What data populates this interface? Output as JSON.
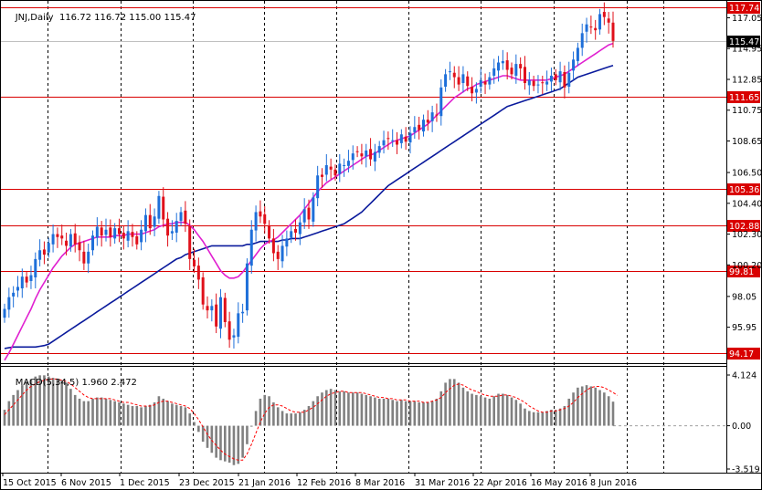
{
  "symbol_label": "JNJ,Daily",
  "ohlc_label": "116.72 116.72 115.00 115.47",
  "macd_label": "MACD(5,34,5) 1.960 2.472",
  "colors": {
    "bull": "#1e6fd9",
    "bear": "#e0101a",
    "ma_fast": "#e020d0",
    "ma_slow": "#0a1a9c",
    "level": "#d90000",
    "hist": "#808080",
    "signal": "#ff0000",
    "grid": "#000000"
  },
  "chart_data": [
    {
      "type": "candlestick",
      "title": "JNJ,Daily",
      "ylim": [
        93.5,
        118.2
      ],
      "y_ticks": [
        "117.05",
        "114.95",
        "112.85",
        "110.75",
        "108.65",
        "106.50",
        "104.40",
        "102.30",
        "100.20",
        "98.05",
        "95.95"
      ],
      "x_ticks": [
        "15 Oct 2015",
        "6 Nov 2015",
        "1 Dec 2015",
        "23 Dec 2015",
        "21 Jan 2016",
        "12 Feb 2016",
        "8 Mar 2016",
        "31 Mar 2016",
        "22 Apr 2016",
        "16 May 2016",
        "8 Jun 2016"
      ],
      "levels": [
        {
          "label": "117.74",
          "value": 117.74
        },
        {
          "label": "111.65",
          "value": 111.65
        },
        {
          "label": "105.36",
          "value": 105.36
        },
        {
          "label": "102.88",
          "value": 102.88
        },
        {
          "label": "99.81",
          "value": 99.81
        },
        {
          "label": "94.17",
          "value": 94.17
        }
      ],
      "current_price": {
        "label": "115.47",
        "value": 115.47
      },
      "closes": [
        97.2,
        98.0,
        98.3,
        98.7,
        99.4,
        99.0,
        99.5,
        100.6,
        101.2,
        100.9,
        101.7,
        102.3,
        102.1,
        102.0,
        101.5,
        102.3,
        101.6,
        101.2,
        100.3,
        101.1,
        102.2,
        102.8,
        102.2,
        102.6,
        102.1,
        102.7,
        102.3,
        102.0,
        102.5,
        102.1,
        101.6,
        102.6,
        103.6,
        102.7,
        103.5,
        104.9,
        103.3,
        102.2,
        102.5,
        103.2,
        103.8,
        103.0,
        100.6,
        100.1,
        99.2,
        97.5,
        97.1,
        97.4,
        96.0,
        98.0,
        96.3,
        95.1,
        95.4,
        96.9,
        97.0,
        100.3,
        102.6,
        103.8,
        103.5,
        103.0,
        102.0,
        101.0,
        100.6,
        101.5,
        102.0,
        102.5,
        102.4,
        103.1,
        104.0,
        103.3,
        104.8,
        106.3,
        106.2,
        107.0,
        106.7,
        106.3,
        107.1,
        107.0,
        107.3,
        107.8,
        107.9,
        107.6,
        108.0,
        107.4,
        107.9,
        108.3,
        108.7,
        108.8,
        108.7,
        108.4,
        109.1,
        108.6,
        109.2,
        109.6,
        109.4,
        110.1,
        109.9,
        110.6,
        110.4,
        112.3,
        113.2,
        113.4,
        113.0,
        112.5,
        113.2,
        112.4,
        111.9,
        112.2,
        112.8,
        112.5,
        113.0,
        113.6,
        114.0,
        114.1,
        113.5,
        113.2,
        113.9,
        113.6,
        112.6,
        112.8,
        112.4,
        112.5,
        112.6,
        112.7,
        113.1,
        112.8,
        113.4,
        112.3,
        113.3,
        114.2,
        115.0,
        116.0,
        116.6,
        116.4,
        116.2,
        117.3,
        117.1,
        116.72,
        115.47
      ],
      "ma_fast": [
        93.7,
        94.2,
        94.8,
        95.4,
        96.0,
        96.6,
        97.2,
        97.9,
        98.5,
        99.0,
        99.5,
        100.0,
        100.4,
        100.8,
        101.1,
        101.4,
        101.6,
        101.7,
        101.8,
        101.9,
        102.0,
        102.1,
        102.1,
        102.1,
        102.1,
        102.2,
        102.2,
        102.2,
        102.3,
        102.3,
        102.3,
        102.3,
        102.4,
        102.5,
        102.6,
        102.8,
        102.9,
        103.0,
        103.0,
        103.1,
        103.1,
        103.1,
        102.9,
        102.6,
        102.2,
        101.8,
        101.3,
        100.8,
        100.3,
        99.8,
        99.5,
        99.3,
        99.3,
        99.4,
        99.7,
        100.1,
        100.5,
        100.9,
        101.3,
        101.6,
        101.8,
        101.9,
        102.1,
        102.4,
        102.7,
        103.0,
        103.3,
        103.6,
        104.0,
        104.4,
        104.8,
        105.2,
        105.5,
        105.8,
        106.0,
        106.2,
        106.4,
        106.6,
        106.8,
        107.0,
        107.2,
        107.4,
        107.6,
        107.7,
        107.8,
        108.0,
        108.2,
        108.4,
        108.6,
        108.7,
        108.8,
        108.9,
        109.0,
        109.2,
        109.4,
        109.6,
        109.8,
        110.1,
        110.4,
        110.7,
        111.0,
        111.3,
        111.6,
        111.8,
        112.0,
        112.2,
        112.3,
        112.5,
        112.6,
        112.7,
        112.8,
        112.9,
        113.0,
        113.1,
        113.1,
        113.0,
        112.9,
        112.8,
        112.8,
        112.8,
        112.8,
        112.8,
        112.8,
        112.8,
        112.9,
        113.0,
        113.1,
        113.2,
        113.4,
        113.6,
        113.8,
        114.0,
        114.2,
        114.4,
        114.6,
        114.8,
        115.0,
        115.2,
        115.3
      ],
      "ma_slow": [
        94.5,
        94.55,
        94.6,
        94.6,
        94.6,
        94.6,
        94.6,
        94.6,
        94.65,
        94.7,
        94.8,
        95.0,
        95.2,
        95.4,
        95.6,
        95.8,
        96.0,
        96.2,
        96.4,
        96.6,
        96.8,
        97.0,
        97.2,
        97.4,
        97.6,
        97.8,
        98.0,
        98.2,
        98.4,
        98.6,
        98.8,
        99.0,
        99.2,
        99.4,
        99.6,
        99.8,
        100.0,
        100.2,
        100.4,
        100.6,
        100.7,
        100.9,
        101.0,
        101.1,
        101.2,
        101.3,
        101.4,
        101.5,
        101.5,
        101.5,
        101.5,
        101.5,
        101.5,
        101.5,
        101.5,
        101.6,
        101.6,
        101.7,
        101.8,
        101.8,
        101.8,
        101.8,
        101.8,
        101.9,
        101.9,
        102.0,
        102.0,
        102.0,
        102.1,
        102.2,
        102.3,
        102.4,
        102.5,
        102.6,
        102.7,
        102.8,
        102.9,
        103.0,
        103.2,
        103.4,
        103.6,
        103.8,
        104.1,
        104.4,
        104.7,
        105.0,
        105.3,
        105.6,
        105.8,
        106.0,
        106.2,
        106.4,
        106.6,
        106.8,
        107.0,
        107.2,
        107.4,
        107.6,
        107.8,
        108.0,
        108.2,
        108.4,
        108.6,
        108.8,
        109.0,
        109.2,
        109.4,
        109.6,
        109.8,
        110.0,
        110.2,
        110.4,
        110.6,
        110.8,
        111.0,
        111.1,
        111.2,
        111.3,
        111.4,
        111.5,
        111.6,
        111.7,
        111.8,
        111.9,
        112.0,
        112.1,
        112.2,
        112.4,
        112.6,
        112.8,
        113.0,
        113.1,
        113.2,
        113.3,
        113.4,
        113.5,
        113.6,
        113.7,
        113.8
      ]
    },
    {
      "type": "bar",
      "title": "MACD(5,34,5) 1.960 2.472",
      "ylim": [
        -3.519,
        4.124
      ],
      "y_ticks": [
        "4.124",
        "0.00",
        "-3.519"
      ],
      "histogram": [
        1.3,
        2.0,
        2.5,
        2.9,
        3.3,
        3.6,
        3.8,
        4.0,
        4.1,
        4.1,
        4.0,
        3.9,
        3.8,
        3.7,
        3.5,
        3.0,
        2.5,
        2.2,
        2.0,
        2.0,
        2.2,
        2.3,
        2.3,
        2.2,
        2.1,
        2.0,
        1.9,
        1.8,
        1.7,
        1.6,
        1.6,
        1.5,
        1.6,
        1.7,
        1.9,
        2.4,
        2.2,
        2.0,
        1.8,
        1.7,
        1.6,
        1.5,
        1.0,
        0.3,
        -0.5,
        -1.3,
        -1.8,
        -2.2,
        -2.6,
        -2.8,
        -2.9,
        -3.0,
        -3.2,
        -3.1,
        -2.6,
        -1.5,
        0.0,
        1.2,
        2.2,
        2.5,
        2.4,
        1.9,
        1.5,
        1.2,
        1.0,
        1.0,
        1.0,
        1.1,
        1.3,
        1.6,
        2.0,
        2.4,
        2.7,
        2.9,
        3.0,
        2.9,
        2.8,
        2.8,
        2.7,
        2.7,
        2.7,
        2.6,
        2.5,
        2.4,
        2.3,
        2.2,
        2.2,
        2.2,
        2.1,
        2.0,
        2.1,
        2.0,
        2.0,
        2.0,
        1.9,
        1.9,
        1.9,
        2.0,
        2.2,
        2.8,
        3.5,
        3.8,
        3.8,
        3.5,
        3.1,
        2.8,
        2.6,
        2.5,
        2.4,
        2.3,
        2.2,
        2.4,
        2.6,
        2.6,
        2.5,
        2.3,
        2.1,
        1.8,
        1.4,
        1.2,
        1.1,
        1.1,
        1.1,
        1.2,
        1.3,
        1.3,
        1.4,
        1.6,
        2.2,
        2.7,
        3.1,
        3.2,
        3.3,
        3.2,
        3.1,
        2.9,
        2.7,
        2.4,
        1.96
      ],
      "signal": [
        0.9,
        1.3,
        1.7,
        2.1,
        2.5,
        2.9,
        3.2,
        3.4,
        3.6,
        3.7,
        3.8,
        3.8,
        3.8,
        3.7,
        3.6,
        3.4,
        3.1,
        2.8,
        2.5,
        2.3,
        2.2,
        2.2,
        2.2,
        2.2,
        2.2,
        2.1,
        2.0,
        1.9,
        1.9,
        1.8,
        1.7,
        1.6,
        1.6,
        1.6,
        1.7,
        1.9,
        2.0,
        2.0,
        1.9,
        1.8,
        1.7,
        1.6,
        1.4,
        1.0,
        0.5,
        -0.1,
        -0.7,
        -1.2,
        -1.6,
        -2.0,
        -2.3,
        -2.5,
        -2.7,
        -2.8,
        -2.8,
        -2.3,
        -1.5,
        -0.6,
        0.3,
        1.0,
        1.5,
        1.7,
        1.7,
        1.6,
        1.4,
        1.2,
        1.1,
        1.1,
        1.1,
        1.3,
        1.5,
        1.8,
        2.1,
        2.4,
        2.6,
        2.7,
        2.8,
        2.8,
        2.7,
        2.7,
        2.7,
        2.7,
        2.6,
        2.5,
        2.4,
        2.3,
        2.3,
        2.2,
        2.2,
        2.1,
        2.1,
        2.1,
        2.0,
        2.0,
        2.0,
        1.9,
        1.9,
        2.0,
        2.1,
        2.3,
        2.7,
        3.0,
        3.3,
        3.4,
        3.3,
        3.1,
        2.9,
        2.8,
        2.6,
        2.5,
        2.4,
        2.4,
        2.4,
        2.5,
        2.5,
        2.4,
        2.3,
        2.1,
        1.9,
        1.6,
        1.4,
        1.2,
        1.1,
        1.1,
        1.2,
        1.2,
        1.3,
        1.4,
        1.6,
        1.9,
        2.3,
        2.6,
        2.9,
        3.1,
        3.2,
        3.2,
        3.1,
        2.9,
        2.7,
        2.472
      ]
    }
  ]
}
